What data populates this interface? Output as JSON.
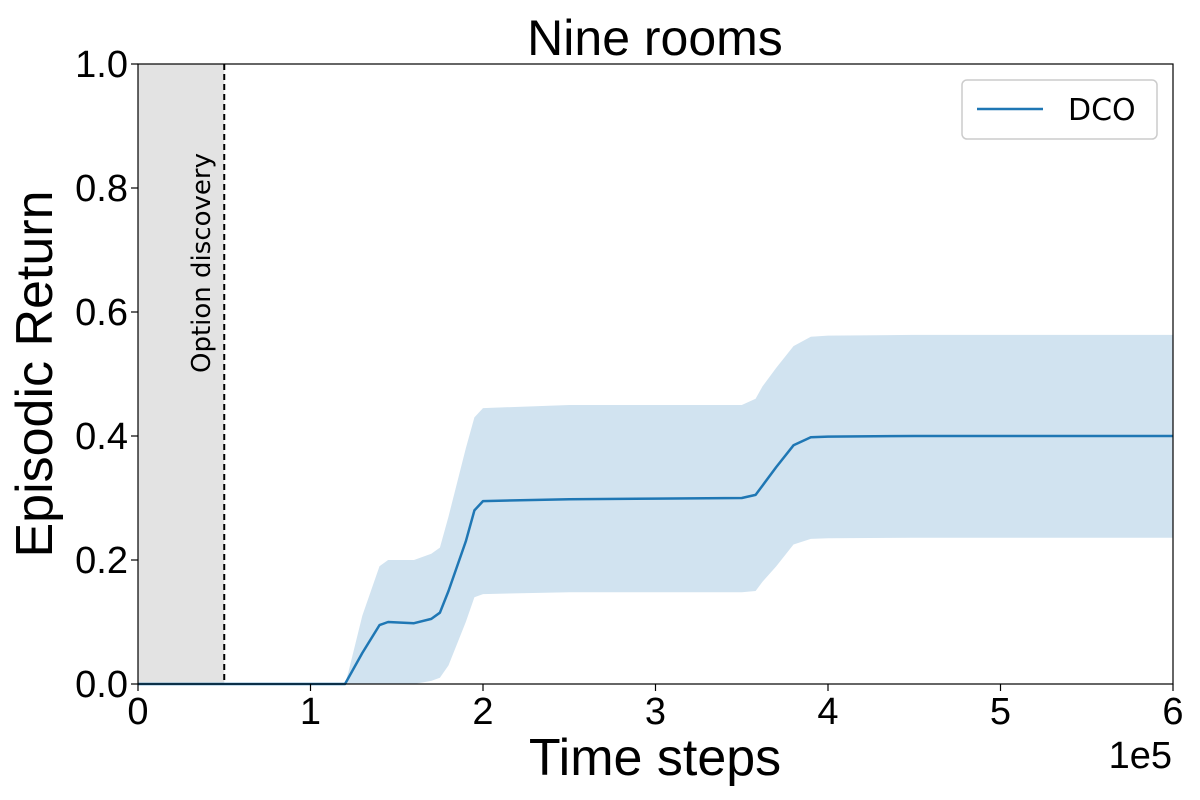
{
  "chart_data": {
    "type": "line",
    "title": "Nine rooms",
    "xlabel": "Time steps",
    "ylabel": "Episodic Return",
    "x_multiplier_label": "1e5",
    "xlim": [
      0,
      6
    ],
    "ylim": [
      0,
      1
    ],
    "x_ticks": [
      "0",
      "1",
      "2",
      "3",
      "4",
      "5",
      "6"
    ],
    "y_ticks": [
      "0.0",
      "0.2",
      "0.4",
      "0.6",
      "0.8",
      "1.0"
    ],
    "grid": false,
    "legend_position": "top-right",
    "shaded_region": {
      "x_start": 0,
      "x_end": 0.5,
      "color": "#e3e3e3"
    },
    "vertical_line": {
      "x": 0.5,
      "style": "dashed",
      "color": "#000000"
    },
    "annotation": "Option discovery",
    "series": [
      {
        "name": "DCO",
        "color": "#1f77b4",
        "band_color": "#d1e3f0",
        "x": [
          0,
          1.2,
          1.22,
          1.3,
          1.4,
          1.45,
          1.6,
          1.7,
          1.75,
          1.8,
          1.9,
          1.95,
          2.0,
          2.5,
          3.0,
          3.5,
          3.58,
          3.62,
          3.7,
          3.8,
          3.9,
          4.0,
          4.5,
          5.0,
          6.0
        ],
        "y": [
          0,
          0,
          0.01,
          0.05,
          0.095,
          0.1,
          0.098,
          0.105,
          0.115,
          0.15,
          0.23,
          0.28,
          0.295,
          0.298,
          0.299,
          0.3,
          0.305,
          0.32,
          0.35,
          0.385,
          0.398,
          0.399,
          0.4,
          0.4,
          0.4
        ],
        "lower": [
          0,
          0,
          0,
          0,
          0,
          0,
          0,
          0.005,
          0.01,
          0.03,
          0.1,
          0.14,
          0.145,
          0.148,
          0.148,
          0.148,
          0.15,
          0.165,
          0.19,
          0.225,
          0.234,
          0.235,
          0.236,
          0.236,
          0.236
        ],
        "upper": [
          0,
          0,
          0.02,
          0.11,
          0.19,
          0.2,
          0.2,
          0.21,
          0.22,
          0.27,
          0.38,
          0.43,
          0.445,
          0.45,
          0.45,
          0.45,
          0.46,
          0.48,
          0.51,
          0.545,
          0.56,
          0.562,
          0.563,
          0.563,
          0.563
        ]
      }
    ]
  }
}
